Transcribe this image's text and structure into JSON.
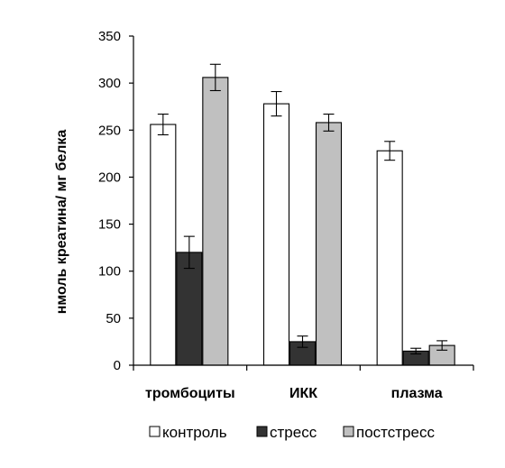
{
  "chart_data": {
    "type": "bar",
    "title": "",
    "xlabel": "",
    "ylabel": "нмоль креатина/ мг белка",
    "ylim": [
      0,
      350
    ],
    "yticks": [
      0,
      50,
      100,
      150,
      200,
      250,
      300,
      350
    ],
    "categories": [
      "тромбоциты",
      "ИКК",
      "плазма"
    ],
    "series": [
      {
        "name": "контроль",
        "color": "#ffffff",
        "values": [
          256,
          278,
          228
        ],
        "errors": [
          11,
          13,
          10
        ]
      },
      {
        "name": "стресс",
        "color": "#333333",
        "values": [
          120,
          25,
          15
        ],
        "errors": [
          17,
          6,
          3
        ]
      },
      {
        "name": "постстресс",
        "color": "#c0c0c0",
        "values": [
          306,
          258,
          21
        ],
        "errors": [
          14,
          9,
          5
        ]
      }
    ],
    "grid": false,
    "error_bars": true,
    "legend_position": "bottom"
  }
}
